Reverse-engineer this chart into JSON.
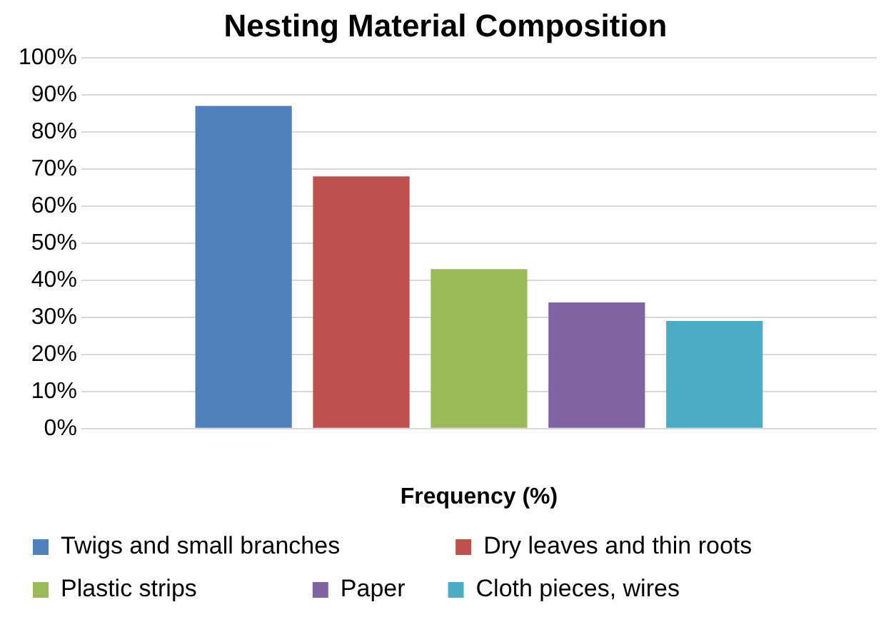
{
  "chart_data": {
    "type": "bar",
    "title": "Nesting Material Composition",
    "xlabel": "Frequency (%)",
    "categories": [
      null
    ],
    "series": [
      {
        "name": "Twigs and small branches",
        "color": "#4f81bd",
        "values": [
          87
        ]
      },
      {
        "name": "Dry leaves and thin roots",
        "color": "#c0504d",
        "values": [
          68
        ]
      },
      {
        "name": "Plastic strips",
        "color": "#9bbb59",
        "values": [
          43
        ]
      },
      {
        "name": "Paper",
        "color": "#8064a2",
        "values": [
          34
        ]
      },
      {
        "name": "Cloth pieces, wires",
        "color": "#4bacc6",
        "values": [
          29
        ]
      }
    ],
    "ylim": [
      0,
      100
    ],
    "yticks": [
      {
        "value": 0,
        "label": "0%"
      },
      {
        "value": 10,
        "label": "10%"
      },
      {
        "value": 20,
        "label": "20%"
      },
      {
        "value": 30,
        "label": "30%"
      },
      {
        "value": 40,
        "label": "40%"
      },
      {
        "value": 50,
        "label": "50%"
      },
      {
        "value": 60,
        "label": "60%"
      },
      {
        "value": 70,
        "label": "70%"
      },
      {
        "value": 80,
        "label": "80%"
      },
      {
        "value": 90,
        "label": "90%"
      },
      {
        "value": 100,
        "label": "100%"
      }
    ],
    "grid": "y",
    "legend": "bottom"
  }
}
